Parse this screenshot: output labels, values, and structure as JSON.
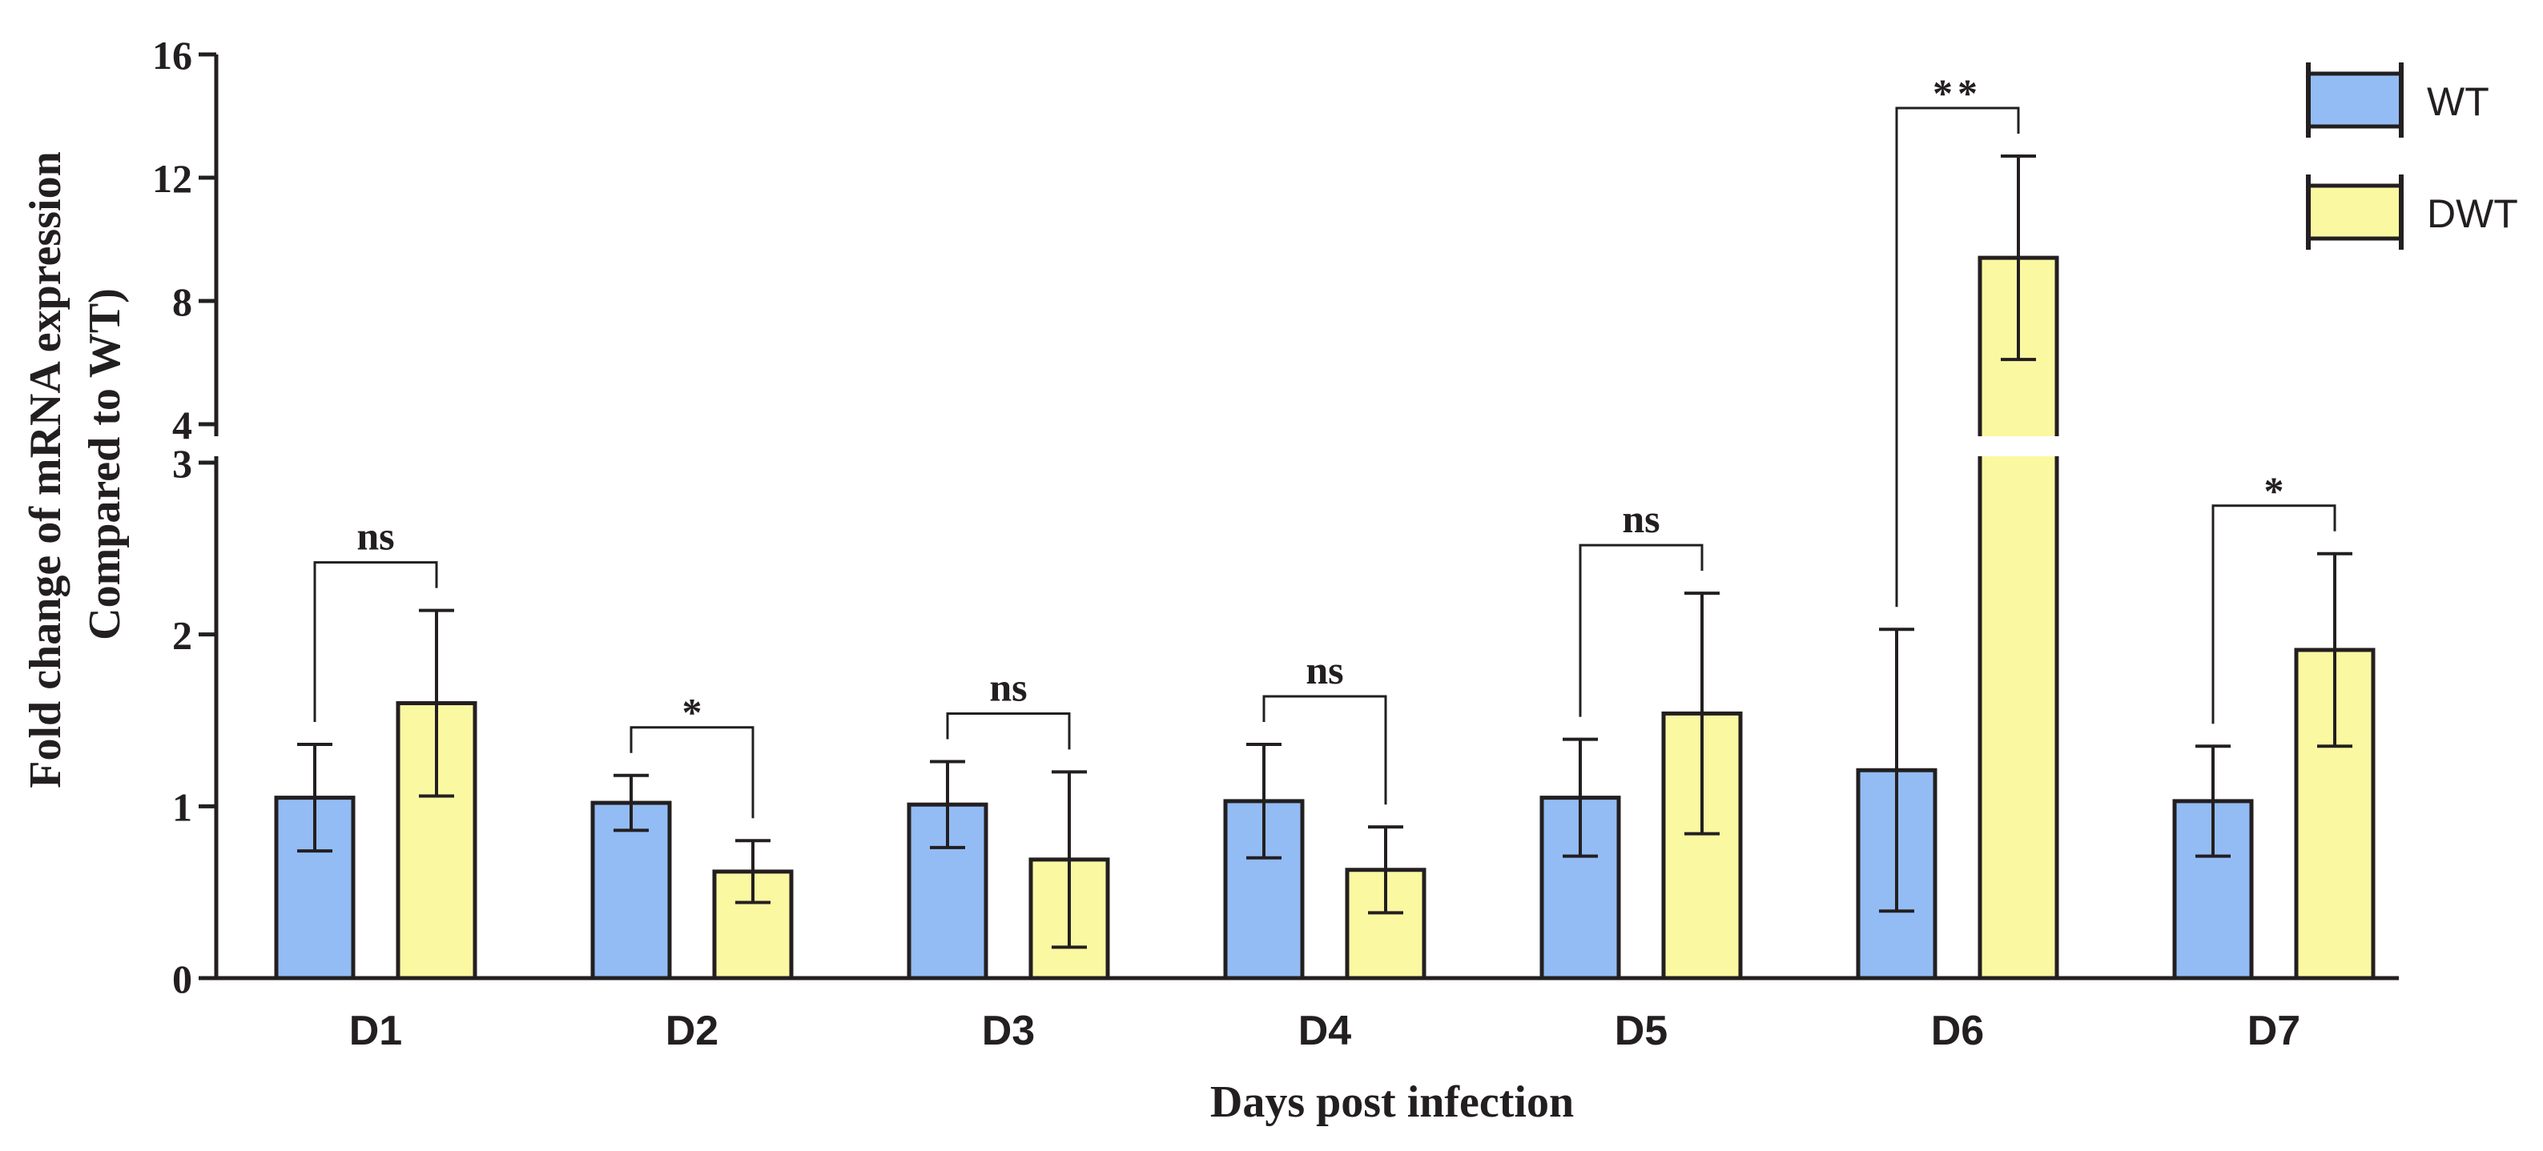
{
  "chart_data": {
    "type": "bar",
    "title": "",
    "xlabel": "Days post infection",
    "ylabel_lines": [
      "Fold change of mRNA expression",
      "Compared to WT)"
    ],
    "categories": [
      "D1",
      "D2",
      "D3",
      "D4",
      "D5",
      "D6",
      "D7"
    ],
    "series": [
      {
        "name": "WT",
        "color": "#93bcf4",
        "values": [
          1.05,
          1.02,
          1.01,
          1.03,
          1.05,
          1.21,
          1.03
        ],
        "errors": [
          0.31,
          0.16,
          0.25,
          0.33,
          0.34,
          0.82,
          0.32
        ]
      },
      {
        "name": "DWT",
        "color": "#fbf8a2",
        "values": [
          1.6,
          0.62,
          0.69,
          0.63,
          1.54,
          9.4,
          1.91
        ],
        "errors": [
          0.54,
          0.18,
          0.51,
          0.25,
          0.7,
          3.3,
          0.56
        ]
      }
    ],
    "significance": [
      "ns",
      "*",
      "ns",
      "ns",
      "ns",
      "**",
      "*"
    ],
    "y_axis_broken": true,
    "lower_segment": {
      "ylim": [
        0,
        3
      ],
      "ticks": [
        "0",
        "1",
        "2",
        "3"
      ]
    },
    "upper_segment": {
      "ylim": [
        4,
        16
      ],
      "ticks": [
        "4",
        "8",
        "12",
        "16"
      ]
    },
    "legend_position": "top-right",
    "bar_edge_color": "#231f20"
  }
}
